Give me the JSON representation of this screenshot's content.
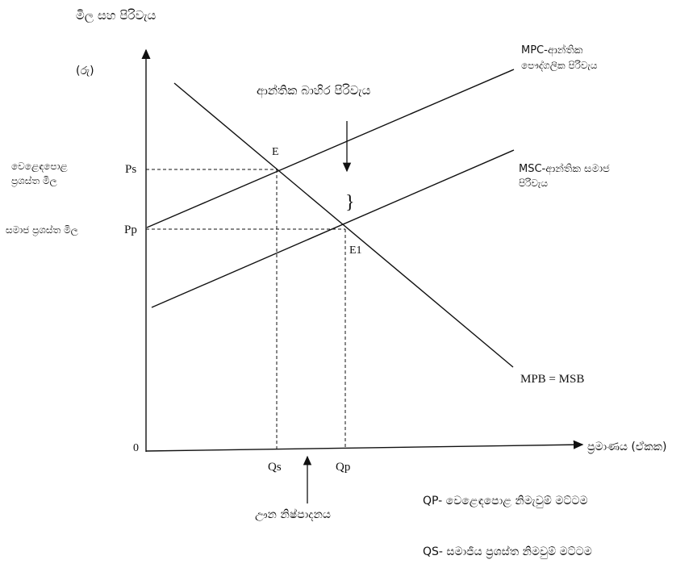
{
  "diagram": {
    "y_axis_title": "මිල සහ පිරිවැය",
    "y_axis_unit": "(රු)",
    "x_axis_title": "ප්‍රමාණය (ඒකක)",
    "origin": "0",
    "top_label": "ආන්තික බාහිර පිරිවැය",
    "brace": "}",
    "point_E": "E",
    "point_E1": "E1",
    "Ps": "Ps",
    "Pp": "Pp",
    "Qs": "Qs",
    "Qp": "Qp",
    "ps_desc_1": "වෙළෙඳපොළ",
    "ps_desc_2": "ප්‍රශස්ත මිල",
    "pp_desc": "සමාජ ප්‍රශස්ත මිල",
    "mpc_label_1": "MPC-ආන්තික",
    "mpc_label_2": "පෞද්ගලික පිරිවැය",
    "msc_label_1": "MSC-ආන්තික සමාජ",
    "msc_label_2": "පිරිවැය",
    "mpb_label": "MPB = MSB",
    "under_label": "ඌන නිෂ්පාදනය",
    "note_qp": "QP- වෙළෙඳපොළ නිමැවුම් මට්ටම",
    "note_qs": "QS- සමාජීය ප්‍රශස්ත නිමවුම් මට්ටම"
  }
}
